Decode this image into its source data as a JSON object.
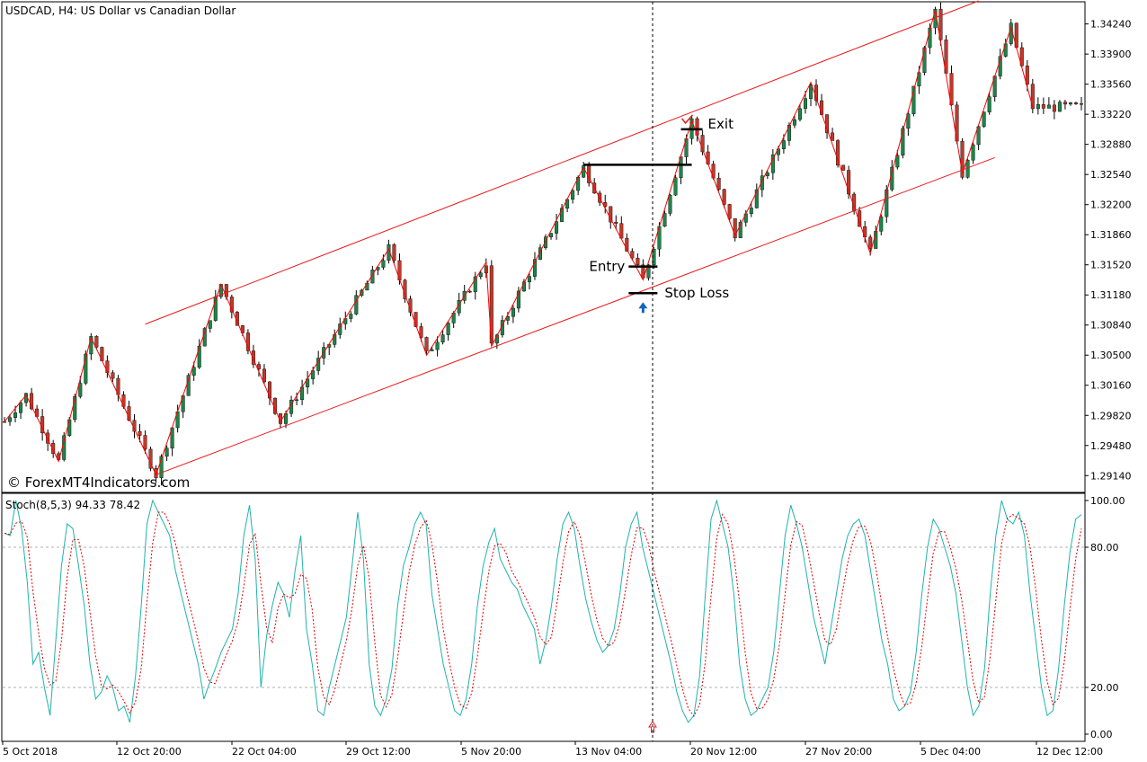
{
  "chart_data": [
    {
      "type": "candlestick",
      "title": "USDCAD, H4:  US Dollar vs Canadian Dollar",
      "watermark": "© ForexMT4Indicators.com",
      "y_ticks": [
        "1.34240",
        "1.33900",
        "1.33560",
        "1.33220",
        "1.32880",
        "1.32540",
        "1.32200",
        "1.31860",
        "1.31520",
        "1.31180",
        "1.30840",
        "1.30500",
        "1.30160",
        "1.29820",
        "1.29480",
        "1.29140"
      ],
      "ylim": [
        1.2895,
        1.3449
      ],
      "x_ticks": [
        "5 Oct 2018",
        "12 Oct 20:00",
        "22 Oct 04:00",
        "29 Oct 12:00",
        "5 Nov 20:00",
        "13 Nov 04:00",
        "20 Nov 12:00",
        "27 Nov 20:00",
        "5 Dec 04:00",
        "12 Dec 12:00"
      ],
      "colors": {
        "bull": "#1e8449",
        "bear": "#c0392b",
        "wick": "#000000",
        "zigzag": "#ff0000",
        "channel": "#e8191c",
        "levels": "#000000",
        "signal": "#1565c0",
        "cursor": "#000000"
      },
      "zigzag_points": [
        [
          0,
          1.2975
        ],
        [
          4,
          1.3005
        ],
        [
          10,
          1.293
        ],
        [
          16,
          1.307
        ],
        [
          28,
          1.2915
        ],
        [
          40,
          1.313
        ],
        [
          51,
          1.2975
        ],
        [
          71,
          1.317
        ],
        [
          78,
          1.305
        ],
        [
          89,
          1.3155
        ],
        [
          90,
          1.306
        ],
        [
          107,
          1.3262
        ],
        [
          118,
          1.3135
        ],
        [
          127,
          1.3315
        ],
        [
          135,
          1.3185
        ],
        [
          149,
          1.3358
        ],
        [
          160,
          1.3165
        ],
        [
          172,
          1.344
        ],
        [
          177,
          1.3255
        ],
        [
          186,
          1.342
        ],
        [
          190,
          1.333
        ]
      ],
      "channel_upper": [
        [
          26,
          1.3085
        ],
        [
          180,
          1.345
        ]
      ],
      "channel_lower": [
        [
          28,
          1.2915
        ],
        [
          183,
          1.3273
        ]
      ],
      "annotations": {
        "entry_label": "Entry",
        "exit_label": "Exit",
        "stop_loss_label": "Stop Loss",
        "entry_price": 1.315,
        "exit_price": 1.3305,
        "stop_loss_price": 1.312,
        "resistance_price": 1.3265,
        "signal_bar": 118
      }
    },
    {
      "type": "line",
      "title": "Stoch(8,5,3) 94.33 78.42",
      "ylim": [
        0,
        100
      ],
      "y_ticks": [
        "100.00",
        "80.00",
        "20.00",
        "0.00"
      ],
      "levels": [
        80,
        20
      ],
      "series": [
        {
          "name": "",
          "style": "solid",
          "color": "#20b2aa"
        },
        {
          "name": "",
          "style": "dotted",
          "color": "#dd0000"
        }
      ],
      "main_values": [
        86,
        85,
        100,
        88,
        65,
        30,
        35,
        20,
        8,
        40,
        72,
        90,
        88,
        72,
        55,
        30,
        15,
        18,
        25,
        20,
        10,
        12,
        5,
        25,
        55,
        90,
        100,
        95,
        90,
        85,
        70,
        60,
        50,
        40,
        30,
        15,
        22,
        28,
        35,
        40,
        45,
        60,
        85,
        98,
        75,
        20,
        42,
        55,
        65,
        60,
        50,
        70,
        85,
        45,
        30,
        10,
        8,
        20,
        30,
        40,
        50,
        72,
        95,
        75,
        30,
        12,
        8,
        15,
        28,
        55,
        72,
        80,
        90,
        95,
        90,
        60,
        45,
        30,
        20,
        10,
        8,
        15,
        30,
        55,
        72,
        82,
        88,
        75,
        70,
        65,
        62,
        55,
        50,
        45,
        30,
        40,
        55,
        75,
        90,
        95,
        88,
        72,
        58,
        48,
        40,
        35,
        38,
        45,
        60,
        80,
        90,
        95,
        80,
        70,
        60,
        50,
        40,
        30,
        18,
        10,
        5,
        8,
        25,
        60,
        92,
        100,
        90,
        80,
        60,
        30,
        15,
        8,
        10,
        15,
        20,
        35,
        60,
        85,
        98,
        90,
        80,
        65,
        50,
        40,
        30,
        45,
        60,
        75,
        85,
        90,
        92,
        85,
        70,
        55,
        40,
        30,
        15,
        10,
        12,
        18,
        35,
        60,
        80,
        92,
        88,
        80,
        72,
        60,
        40,
        20,
        8,
        12,
        28,
        60,
        85,
        100,
        92,
        90,
        95,
        85,
        60,
        40,
        20,
        8,
        10,
        28,
        55,
        78,
        92,
        94
      ]
    }
  ]
}
